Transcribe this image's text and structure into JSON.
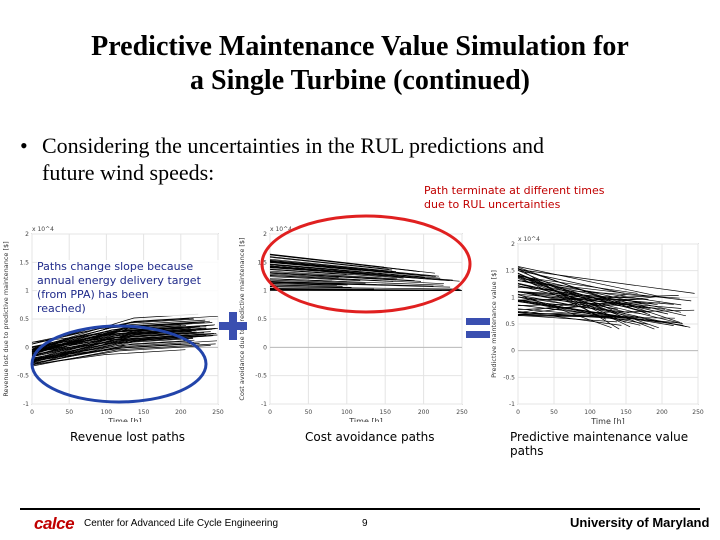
{
  "slide": {
    "title_line1": "Predictive Maintenance Value Simulation for",
    "title_line2": "a Single Turbine (continued)",
    "bullet_symbol": "•",
    "bullet_line1": "Considering the uncertainties in the RUL predictions and",
    "bullet_line2": "future wind speeds:",
    "note_red_line1": "Path terminate at different times",
    "note_red_line2": "due to RUL uncertainties",
    "note_blue_line1": "Paths change slope because",
    "note_blue_line2": "annual energy delivery target",
    "note_blue_line3": "(from PPA) has been",
    "note_blue_line4": "reached)",
    "caption_left": "Revenue lost paths",
    "caption_mid": "Cost avoidance paths",
    "caption_right": "Predictive maintenance value paths",
    "footer_logo": "calce",
    "footer_center": "Center for Advanced Life Cycle Engineering",
    "page_number": "9",
    "footer_right": "University of Maryland",
    "colors": {
      "red": "#c00000",
      "blue": "#1f2a8a",
      "ellipse_red": "#e02020",
      "ellipse_blue": "#2244aa"
    },
    "operator_plus_color": "#3a4fb0",
    "operator_equals_color": "#3a4fb0"
  },
  "chart_data": [
    {
      "type": "line",
      "title": "",
      "xlabel": "Time [h]",
      "ylabel": "Revenue lost due to predictive maintenance [$]",
      "exponent": "x 10^4",
      "xlim": [
        0,
        250
      ],
      "ylim": [
        -1,
        2
      ],
      "x_ticks": [
        "0",
        "50",
        "100",
        "150",
        "200",
        "250"
      ],
      "y_ticks": [
        "-1",
        "-0.5",
        "0",
        "0.5",
        "1",
        "1.5",
        "2"
      ]
    },
    {
      "type": "line",
      "title": "",
      "xlabel": "Time [h]",
      "ylabel": "Cost avoidance due to predictive maintenance [$]",
      "exponent": "x 10^4",
      "xlim": [
        0,
        250
      ],
      "ylim": [
        -1,
        2
      ],
      "x_ticks": [
        "0",
        "50",
        "100",
        "150",
        "200",
        "250"
      ],
      "y_ticks": [
        "-1",
        "-0.5",
        "0",
        "0.5",
        "1",
        "1.5",
        "2"
      ]
    },
    {
      "type": "line",
      "title": "",
      "xlabel": "Time [h]",
      "ylabel": "Predictive maintenance value [$]",
      "exponent": "x 10^4",
      "xlim": [
        0,
        250
      ],
      "ylim": [
        -1,
        2
      ],
      "x_ticks": [
        "0",
        "50",
        "100",
        "150",
        "200",
        "250"
      ],
      "y_ticks": [
        "-1",
        "-0.5",
        "0",
        "0.5",
        "1",
        "1.5",
        "2"
      ]
    }
  ]
}
